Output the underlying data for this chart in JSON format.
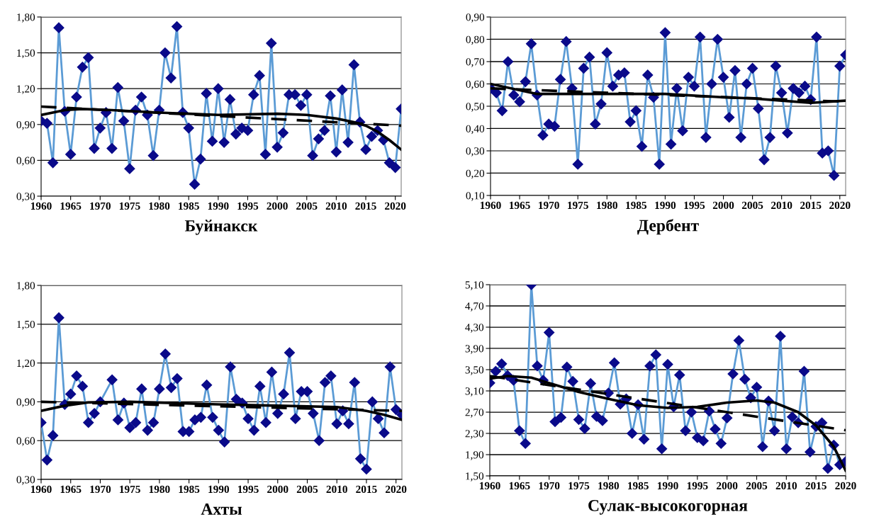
{
  "chart_data": [
    {
      "type": "line",
      "xlabel": "Буйнакск",
      "xlim": [
        1960,
        2021
      ],
      "xticks": [
        1960,
        1965,
        1970,
        1975,
        1980,
        1985,
        1990,
        1995,
        2000,
        2005,
        2010,
        2015,
        2020
      ],
      "ylim": [
        0.3,
        1.8
      ],
      "yticks": [
        {
          "value": 0.3,
          "label": "0,30"
        },
        {
          "value": 0.6,
          "label": "0,60"
        },
        {
          "value": 0.9,
          "label": "0,90"
        },
        {
          "value": 1.2,
          "label": "1,20"
        },
        {
          "value": 1.5,
          "label": "1,50"
        },
        {
          "value": 1.8,
          "label": "1,80"
        }
      ],
      "grid": "y",
      "marker": "diamond",
      "series": [
        {
          "color": "#5b9bd5",
          "x": [
            1960,
            1961,
            1962,
            1963,
            1964,
            1965,
            1966,
            1967,
            1968,
            1969,
            1970,
            1971,
            1972,
            1973,
            1974,
            1975,
            1976,
            1977,
            1978,
            1979,
            1980,
            1981,
            1982,
            1983,
            1984,
            1985,
            1986,
            1987,
            1988,
            1989,
            1990,
            1991,
            1992,
            1993,
            1994,
            1995,
            1996,
            1997,
            1998,
            1999,
            2000,
            2001,
            2002,
            2003,
            2004,
            2005,
            2006,
            2007,
            2008,
            2009,
            2010,
            2011,
            2012,
            2013,
            2014,
            2015,
            2016,
            2017,
            2018,
            2019,
            2020,
            2021
          ],
          "values": [
            0.93,
            0.91,
            0.58,
            1.71,
            1.01,
            0.65,
            1.13,
            1.38,
            1.46,
            0.7,
            0.87,
            1.0,
            0.7,
            1.21,
            0.93,
            0.53,
            1.02,
            1.13,
            0.98,
            0.64,
            1.02,
            1.5,
            1.29,
            1.72,
            1.0,
            0.87,
            0.4,
            0.61,
            1.16,
            0.76,
            1.2,
            0.75,
            1.11,
            0.82,
            0.87,
            0.85,
            1.15,
            1.31,
            0.65,
            1.58,
            0.71,
            0.83,
            1.15,
            1.15,
            1.06,
            1.15,
            0.64,
            0.78,
            0.85,
            1.14,
            0.67,
            1.19,
            0.75,
            1.4,
            0.92,
            0.69,
            0.8,
            0.85,
            0.77,
            0.58,
            0.54,
            1.03
          ]
        },
        {
          "type": "line",
          "color": "#000000",
          "marker": "none",
          "line_style": "dashed",
          "x": [
            1960,
            2021
          ],
          "values": [
            1.05,
            0.89
          ]
        },
        {
          "type": "line",
          "color": "#000000",
          "marker": "none",
          "line_style": "solid",
          "x": [
            1960,
            1964,
            1967,
            1972,
            1980,
            1990,
            2000,
            2005,
            2010,
            2013,
            2015,
            2017,
            2019,
            2021
          ],
          "values": [
            0.98,
            1.02,
            1.03,
            1.02,
            1.0,
            0.98,
            0.99,
            0.98,
            0.95,
            0.92,
            0.89,
            0.84,
            0.77,
            0.69
          ]
        }
      ]
    },
    {
      "type": "line",
      "xlabel": "Дербент",
      "xlim": [
        1960,
        2021
      ],
      "xticks": [
        1960,
        1965,
        1970,
        1975,
        1980,
        1985,
        1990,
        1995,
        2000,
        2005,
        2010,
        2015,
        2020
      ],
      "ylim": [
        0.1,
        0.9
      ],
      "yticks": [
        {
          "value": 0.1,
          "label": "0,10"
        },
        {
          "value": 0.2,
          "label": "0,20"
        },
        {
          "value": 0.3,
          "label": "0,30"
        },
        {
          "value": 0.4,
          "label": "0,40"
        },
        {
          "value": 0.5,
          "label": "0,50"
        },
        {
          "value": 0.6,
          "label": "0,60"
        },
        {
          "value": 0.7,
          "label": "0,70"
        },
        {
          "value": 0.8,
          "label": "0,80"
        },
        {
          "value": 0.9,
          "label": "0,90"
        }
      ],
      "grid": "y",
      "marker": "diamond",
      "series": [
        {
          "color": "#5b9bd5",
          "x": [
            1960,
            1961,
            1962,
            1963,
            1964,
            1965,
            1966,
            1967,
            1968,
            1969,
            1970,
            1971,
            1972,
            1973,
            1974,
            1975,
            1976,
            1977,
            1978,
            1979,
            1980,
            1981,
            1982,
            1983,
            1984,
            1985,
            1986,
            1987,
            1988,
            1989,
            1990,
            1991,
            1992,
            1993,
            1994,
            1995,
            1996,
            1997,
            1998,
            1999,
            2000,
            2001,
            2002,
            2003,
            2004,
            2005,
            2006,
            2007,
            2008,
            2009,
            2010,
            2011,
            2012,
            2013,
            2014,
            2015,
            2016,
            2017,
            2018,
            2019,
            2020,
            2021
          ],
          "values": [
            0.58,
            0.56,
            0.48,
            0.7,
            0.55,
            0.52,
            0.61,
            0.78,
            0.55,
            0.37,
            0.42,
            0.41,
            0.62,
            0.79,
            0.58,
            0.24,
            0.67,
            0.72,
            0.42,
            0.51,
            0.74,
            0.59,
            0.64,
            0.65,
            0.43,
            0.48,
            0.32,
            0.64,
            0.54,
            0.24,
            0.83,
            0.33,
            0.58,
            0.39,
            0.63,
            0.59,
            0.81,
            0.36,
            0.6,
            0.8,
            0.63,
            0.45,
            0.66,
            0.36,
            0.6,
            0.67,
            0.49,
            0.26,
            0.36,
            0.68,
            0.56,
            0.38,
            0.58,
            0.56,
            0.59,
            0.53,
            0.81,
            0.29,
            0.3,
            0.19,
            0.68,
            0.73
          ]
        },
        {
          "type": "line",
          "color": "#000000",
          "marker": "none",
          "line_style": "dashed",
          "x": [
            1960,
            2021
          ],
          "values": [
            0.58,
            0.52
          ]
        },
        {
          "type": "line",
          "color": "#000000",
          "marker": "none",
          "line_style": "solid",
          "x": [
            1960,
            1968,
            1980,
            1990,
            2000,
            2005,
            2010,
            2015,
            2021
          ],
          "values": [
            0.6,
            0.555,
            0.555,
            0.555,
            0.54,
            0.535,
            0.525,
            0.515,
            0.525
          ]
        }
      ]
    },
    {
      "type": "line",
      "xlabel": "Ахты",
      "xlim": [
        1960,
        2021
      ],
      "xticks": [
        1960,
        1965,
        1970,
        1975,
        1980,
        1985,
        1990,
        1995,
        2000,
        2005,
        2010,
        2015,
        2020
      ],
      "ylim": [
        0.3,
        1.8
      ],
      "yticks": [
        {
          "value": 0.3,
          "label": "0,30"
        },
        {
          "value": 0.6,
          "label": "0,60"
        },
        {
          "value": 0.9,
          "label": "0,90"
        },
        {
          "value": 1.2,
          "label": "1,20"
        },
        {
          "value": 1.5,
          "label": "1,50"
        },
        {
          "value": 1.8,
          "label": "1,80"
        }
      ],
      "grid": "y",
      "marker": "diamond",
      "series": [
        {
          "color": "#5b9bd5",
          "x": [
            1960,
            1961,
            1962,
            1963,
            1964,
            1965,
            1966,
            1967,
            1968,
            1969,
            1970,
            1972,
            1973,
            1974,
            1975,
            1976,
            1977,
            1978,
            1979,
            1980,
            1981,
            1982,
            1983,
            1984,
            1985,
            1986,
            1987,
            1988,
            1989,
            1990,
            1991,
            1992,
            1993,
            1994,
            1995,
            1996,
            1997,
            1998,
            1999,
            2000,
            2001,
            2002,
            2003,
            2004,
            2005,
            2006,
            2007,
            2008,
            2009,
            2010,
            2011,
            2012,
            2013,
            2014,
            2015,
            2016,
            2017,
            2018,
            2019,
            2020,
            2021
          ],
          "values": [
            0.74,
            0.45,
            0.64,
            1.55,
            0.88,
            0.96,
            1.1,
            1.02,
            0.74,
            0.81,
            0.9,
            1.07,
            0.76,
            0.89,
            0.7,
            0.74,
            1.0,
            0.68,
            0.74,
            1.0,
            1.27,
            1.01,
            1.08,
            0.67,
            0.67,
            0.76,
            0.78,
            1.03,
            0.78,
            0.68,
            0.59,
            1.17,
            0.92,
            0.89,
            0.77,
            0.68,
            1.02,
            0.74,
            1.13,
            0.81,
            0.96,
            1.28,
            0.77,
            0.98,
            0.98,
            0.81,
            0.6,
            1.05,
            1.1,
            0.73,
            0.83,
            0.73,
            1.05,
            0.46,
            0.38,
            0.9,
            0.77,
            0.66,
            1.17,
            0.84,
            0.8
          ]
        },
        {
          "type": "line",
          "color": "#000000",
          "marker": "none",
          "line_style": "dashed",
          "x": [
            1960,
            2021
          ],
          "values": [
            0.9,
            0.83
          ]
        },
        {
          "type": "line",
          "color": "#000000",
          "marker": "none",
          "line_style": "solid",
          "x": [
            1960,
            1964,
            1968,
            1975,
            1990,
            2000,
            2010,
            2015,
            2018,
            2021
          ],
          "values": [
            0.83,
            0.87,
            0.895,
            0.9,
            0.88,
            0.87,
            0.86,
            0.83,
            0.8,
            0.76
          ]
        }
      ]
    },
    {
      "type": "line",
      "xlabel": "Сулак-высокогорная",
      "xlim": [
        1960,
        2020
      ],
      "xticks": [
        1960,
        1965,
        1970,
        1975,
        1980,
        1985,
        1990,
        1995,
        2000,
        2005,
        2010,
        2015,
        2020
      ],
      "ylim": [
        1.5,
        5.1
      ],
      "yticks": [
        {
          "value": 1.5,
          "label": "1,50"
        },
        {
          "value": 1.9,
          "label": "1,90"
        },
        {
          "value": 2.3,
          "label": "2,30"
        },
        {
          "value": 2.7,
          "label": "2,70"
        },
        {
          "value": 3.1,
          "label": "3,10"
        },
        {
          "value": 3.5,
          "label": "3,50"
        },
        {
          "value": 3.9,
          "label": "3,90"
        },
        {
          "value": 4.3,
          "label": "4,30"
        },
        {
          "value": 4.7,
          "label": "4,70"
        },
        {
          "value": 5.1,
          "label": "5,10"
        }
      ],
      "grid": "y",
      "marker": "diamond",
      "series": [
        {
          "color": "#5b9bd5",
          "x": [
            1960,
            1961,
            1962,
            1963,
            1964,
            1965,
            1966,
            1967,
            1968,
            1969,
            1970,
            1971,
            1972,
            1973,
            1974,
            1975,
            1976,
            1977,
            1978,
            1979,
            1980,
            1981,
            1982,
            1983,
            1984,
            1985,
            1986,
            1987,
            1988,
            1989,
            1990,
            1991,
            1992,
            1993,
            1994,
            1995,
            1996,
            1997,
            1998,
            1999,
            2000,
            2001,
            2002,
            2003,
            2004,
            2005,
            2006,
            2007,
            2008,
            2009,
            2010,
            2011,
            2012,
            2013,
            2014,
            2015,
            2016,
            2017,
            2018,
            2019,
            2020
          ],
          "values": [
            3.25,
            3.47,
            3.61,
            3.39,
            3.3,
            2.35,
            2.11,
            5.1,
            3.57,
            3.3,
            4.2,
            2.52,
            2.6,
            3.55,
            3.28,
            2.56,
            2.39,
            3.24,
            2.62,
            2.54,
            3.06,
            3.63,
            2.85,
            2.95,
            2.3,
            2.84,
            2.19,
            3.57,
            3.78,
            2.01,
            3.6,
            2.8,
            3.4,
            2.35,
            2.7,
            2.22,
            2.16,
            2.72,
            2.38,
            2.11,
            2.59,
            3.42,
            4.05,
            3.32,
            2.97,
            3.17,
            2.05,
            2.91,
            2.35,
            4.13,
            2.01,
            2.61,
            2.5,
            3.47,
            1.95,
            2.43,
            2.5,
            1.64,
            2.08,
            1.71,
            1.77
          ]
        },
        {
          "type": "line",
          "color": "#000000",
          "marker": "none",
          "line_style": "dashed",
          "x": [
            1960,
            2020
          ],
          "values": [
            3.38,
            2.36
          ]
        },
        {
          "type": "line",
          "color": "#000000",
          "marker": "none",
          "line_style": "solid",
          "x": [
            1960,
            1963,
            1967,
            1975,
            1980,
            1985,
            1990,
            1995,
            2000,
            2005,
            2008,
            2012,
            2015,
            2018,
            2020
          ],
          "values": [
            3.33,
            3.38,
            3.35,
            3.08,
            2.95,
            2.83,
            2.78,
            2.8,
            2.88,
            2.92,
            2.88,
            2.7,
            2.45,
            2.05,
            1.6
          ]
        }
      ]
    }
  ]
}
